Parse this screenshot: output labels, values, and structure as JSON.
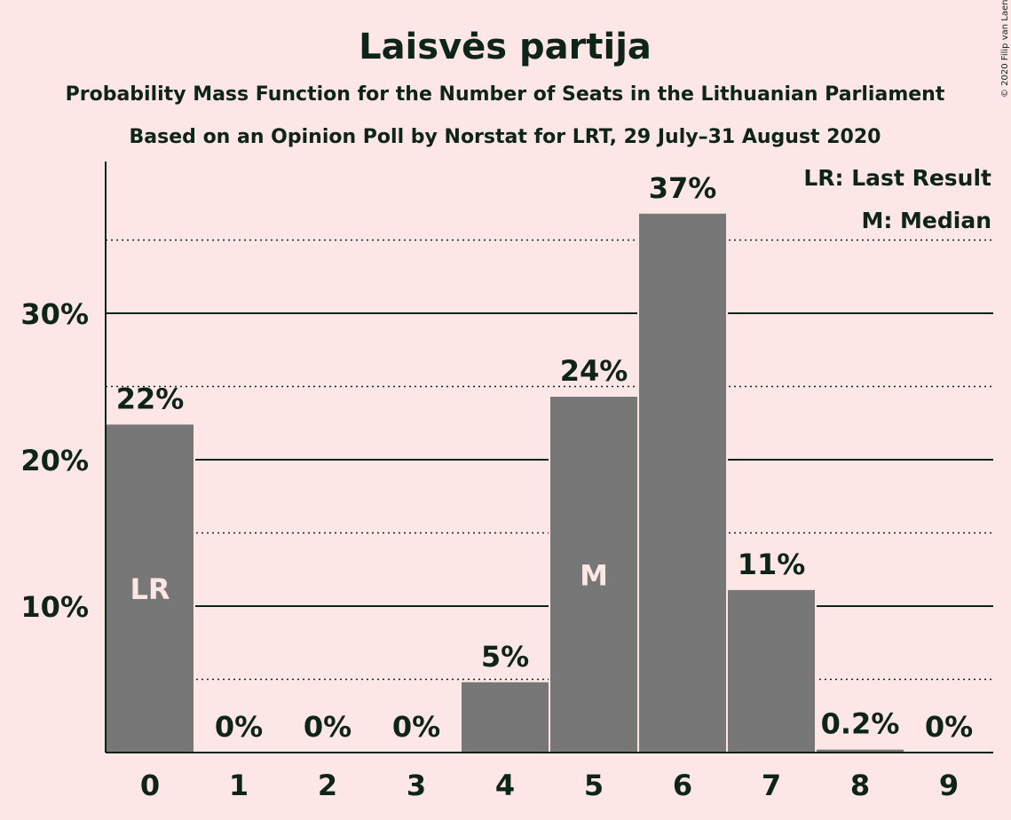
{
  "title": "Laisvės partija",
  "subtitle": "Probability Mass Function for the Number of Seats in the Lithuanian Parliament",
  "subtitle2": "Based on an Opinion Poll by Norstat for LRT, 29 July–31 August 2020",
  "copyright": "© 2020 Filip van Laenen",
  "legend": {
    "lr": "LR: Last Result",
    "m": "M: Median"
  },
  "colors": {
    "background": "#fde6e6",
    "bar": "#777777",
    "text": "#0f2419"
  },
  "chart_data": {
    "type": "bar",
    "categories": [
      "0",
      "1",
      "2",
      "3",
      "4",
      "5",
      "6",
      "7",
      "8",
      "9"
    ],
    "values": [
      22.4,
      0,
      0,
      0,
      4.8,
      24.3,
      36.8,
      11.1,
      0.2,
      0
    ],
    "data_labels": [
      "22%",
      "0%",
      "0%",
      "0%",
      "5%",
      "24%",
      "37%",
      "11%",
      "0.2%",
      "0%"
    ],
    "bar_annotations": [
      {
        "index": 0,
        "text": "LR"
      },
      {
        "index": 5,
        "text": "M"
      }
    ],
    "yticks": [
      {
        "value": 10,
        "label": "10%"
      },
      {
        "value": 20,
        "label": "20%"
      },
      {
        "value": 30,
        "label": "30%"
      }
    ],
    "minor_gridlines": [
      5,
      15,
      25,
      35
    ],
    "ylim": [
      0,
      40
    ],
    "legend_position": "top-right"
  }
}
